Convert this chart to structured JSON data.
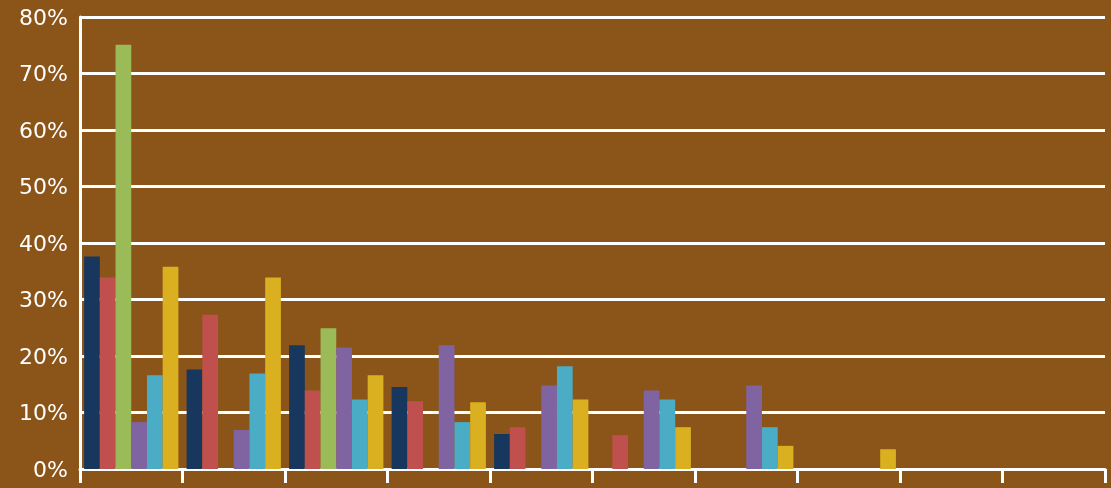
{
  "chart_data": {
    "type": "bar",
    "categories": [
      null,
      null,
      null,
      null,
      null,
      null,
      null,
      null,
      null,
      null
    ],
    "series": [
      {
        "color": "#17375e",
        "values": [
          37.6,
          17.6,
          21.9,
          14.5,
          6.2,
          null,
          null,
          null,
          null,
          null
        ]
      },
      {
        "color": "#c0504d",
        "values": [
          33.9,
          27.3,
          13.9,
          12.0,
          7.4,
          6.0,
          null,
          null,
          null,
          null
        ]
      },
      {
        "color": "#9bbb59",
        "values": [
          75.1,
          null,
          24.9,
          null,
          null,
          null,
          null,
          null,
          null,
          null
        ]
      },
      {
        "color": "#8064a2",
        "values": [
          8.3,
          6.9,
          21.5,
          21.9,
          14.8,
          13.9,
          14.8,
          null,
          null,
          null
        ]
      },
      {
        "color": "#4bacc6",
        "values": [
          16.6,
          16.9,
          12.3,
          8.3,
          18.2,
          12.3,
          7.4,
          null,
          null,
          null
        ]
      },
      {
        "color": "#dbb020",
        "values": [
          35.8,
          33.9,
          16.6,
          11.8,
          12.3,
          7.4,
          4.1,
          3.5,
          null,
          null
        ]
      }
    ],
    "ylim": [
      0,
      80
    ],
    "yticks": [
      {
        "value": 0,
        "label": "0%"
      },
      {
        "value": 10,
        "label": "10%"
      },
      {
        "value": 20,
        "label": "20%"
      },
      {
        "value": 30,
        "label": "30%"
      },
      {
        "value": 40,
        "label": "40%"
      },
      {
        "value": 50,
        "label": "50%"
      },
      {
        "value": 60,
        "label": "60%"
      },
      {
        "value": 70,
        "label": "70%"
      },
      {
        "value": 80,
        "label": "80%"
      }
    ],
    "grid": true
  }
}
